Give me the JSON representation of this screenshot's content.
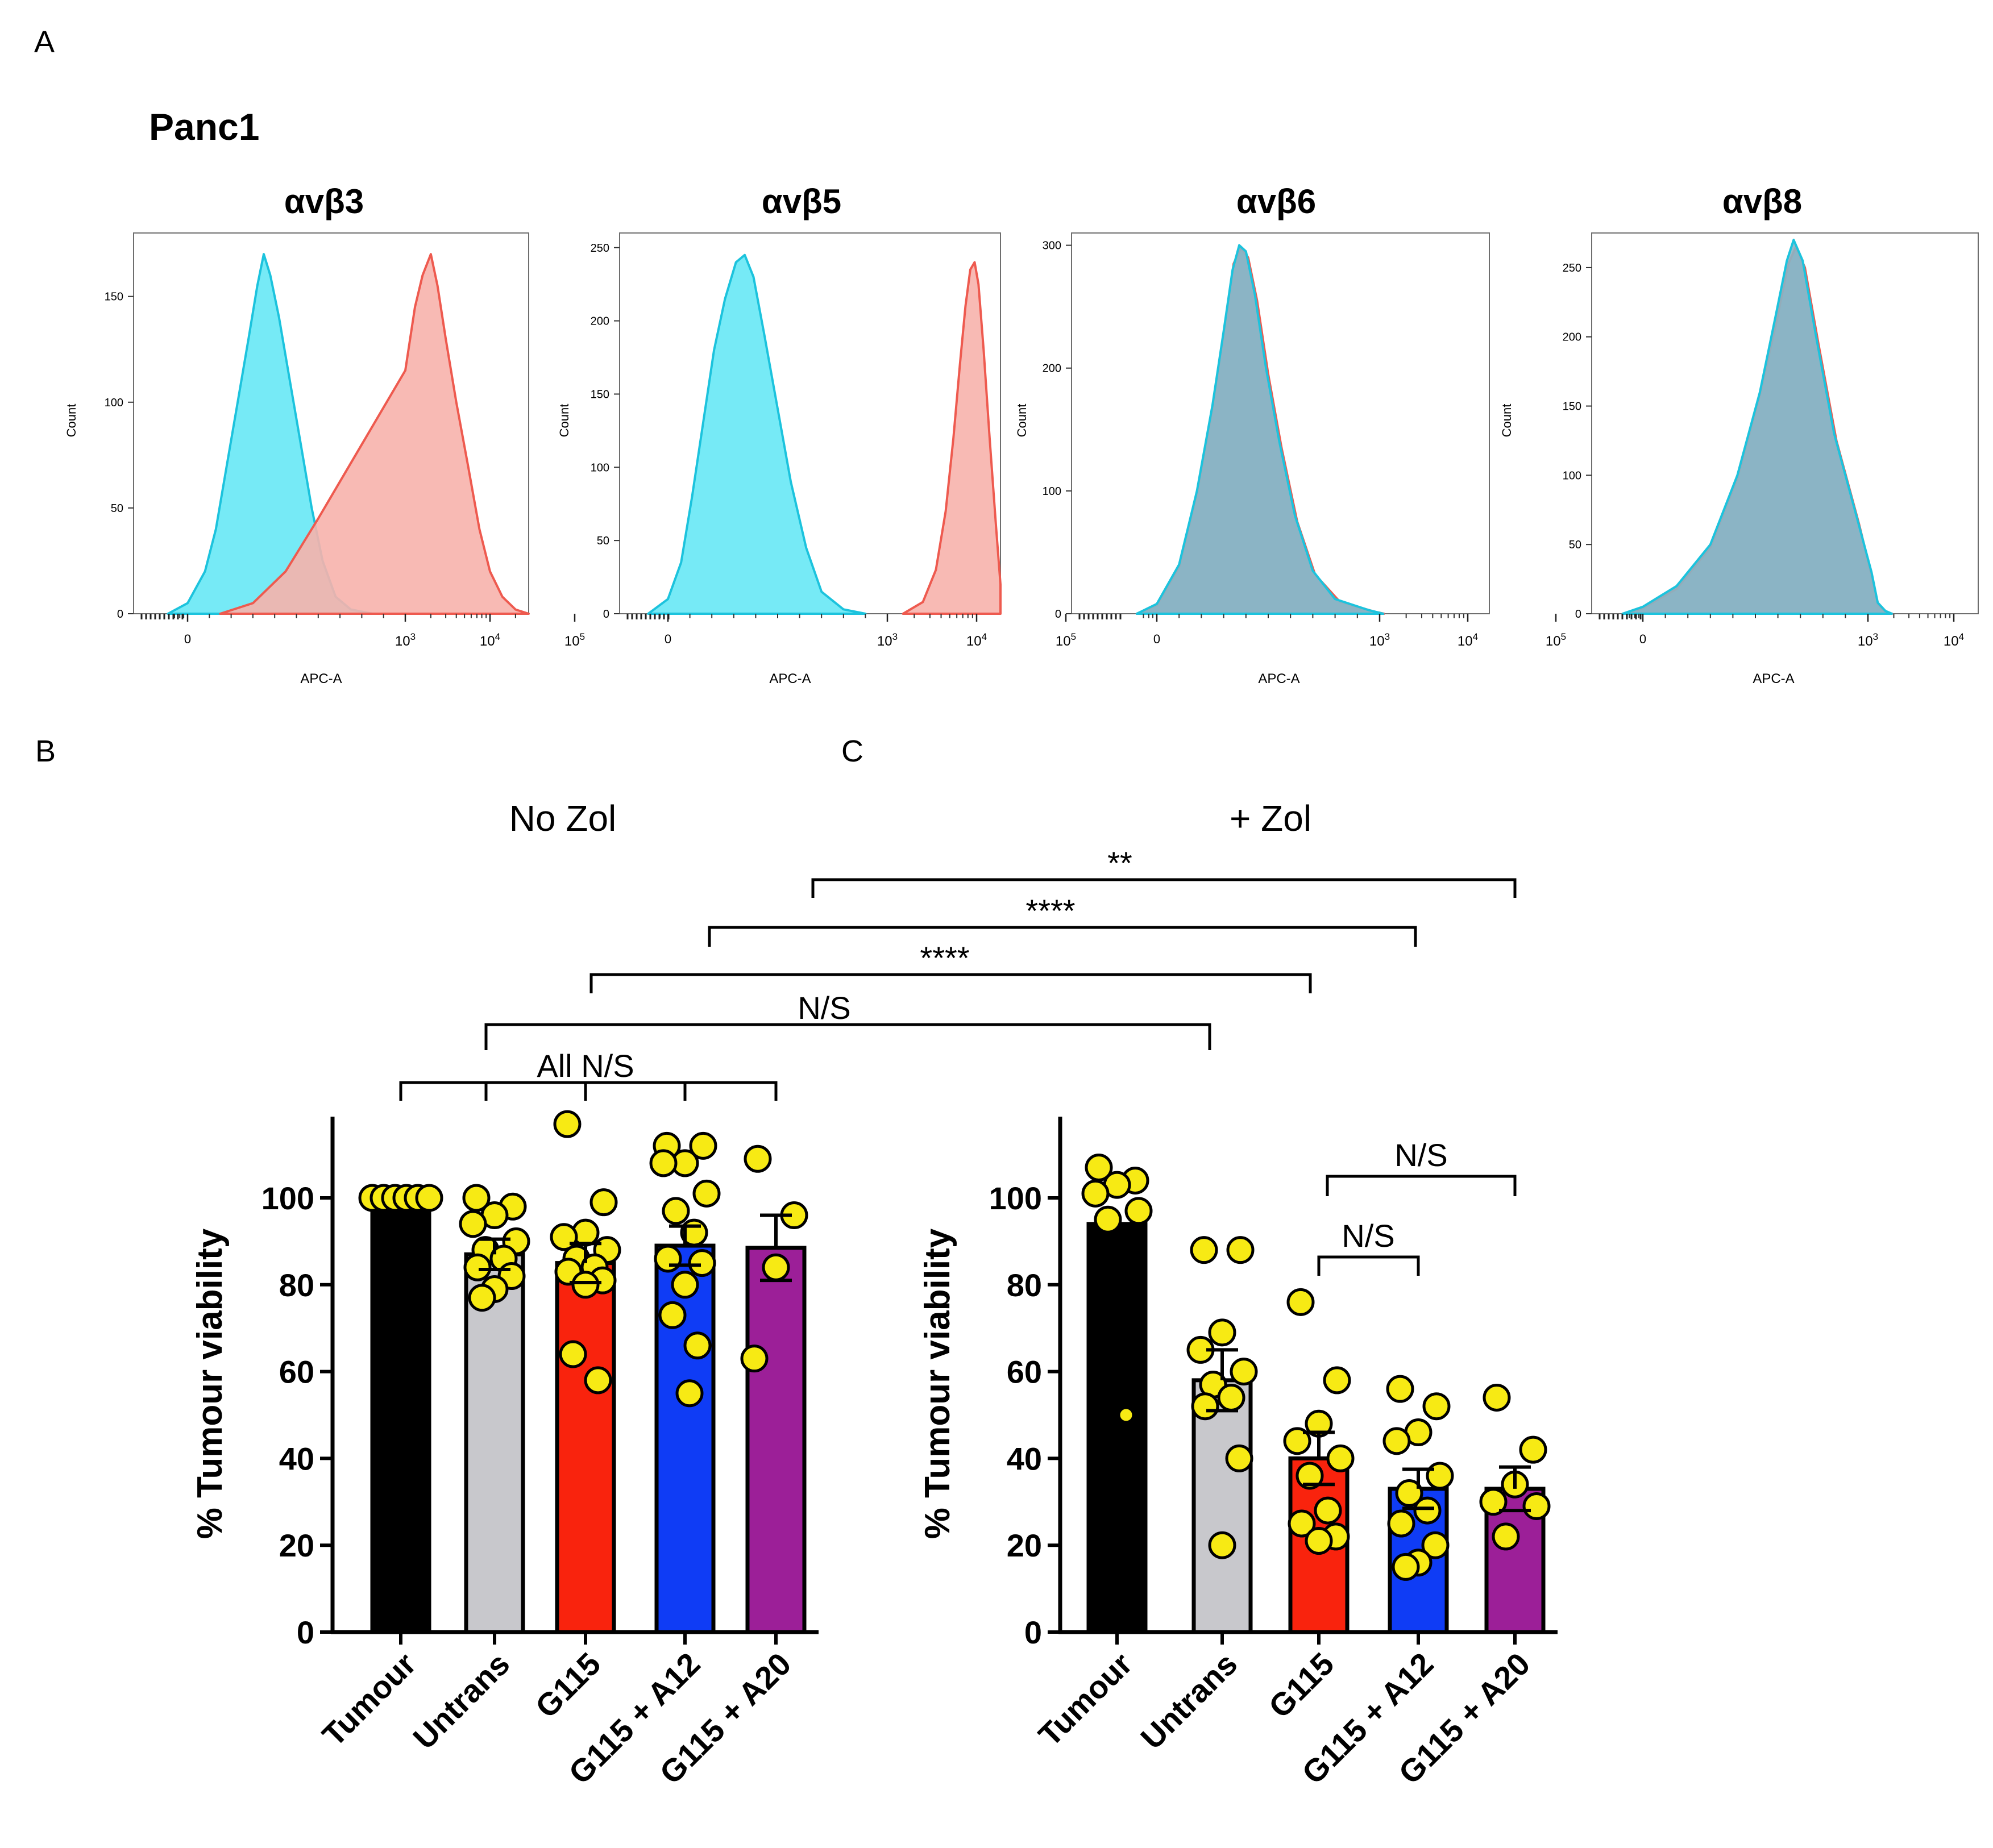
{
  "panel_labels": {
    "a": "A",
    "b": "B",
    "c": "C"
  },
  "cell_line": "Panc1",
  "colors": {
    "isotype_fill": "#6fe9f5",
    "isotype_line": "#1cc3dd",
    "stain_fill": "#f7b2ac",
    "stain_line": "#ee5a4f",
    "tumour": "#000000",
    "untrans": "#c8c8cc",
    "g115": "#f9230d",
    "g115_a12": "#0f3cf5",
    "g115_a20": "#9c1f98",
    "dot": "#f7ea14"
  },
  "chart_data": [
    {
      "type": "area",
      "title": "αvβ3",
      "xlabel": "APC-A",
      "ylabel": "Count",
      "yticks": [
        "0",
        "50",
        "100",
        "150"
      ],
      "ylim": [
        0,
        180
      ],
      "x_scale": "biexponential",
      "xticks": [
        "0",
        "10^3",
        "10^4",
        "10^5"
      ],
      "series": [
        {
          "points": [
            [
              -150,
              0
            ],
            [
              0,
              5
            ],
            [
              80,
              20
            ],
            [
              130,
              40
            ],
            [
              180,
              70
            ],
            [
              230,
              100
            ],
            [
              280,
              130
            ],
            [
              320,
              155
            ],
            [
              350,
              170
            ],
            [
              380,
              160
            ],
            [
              420,
              140
            ],
            [
              470,
              110
            ],
            [
              520,
              80
            ],
            [
              570,
              50
            ],
            [
              620,
              25
            ],
            [
              680,
              8
            ],
            [
              750,
              2
            ],
            [
              850,
              0
            ]
          ]
        },
        {
          "points": [
            [
              150,
              0
            ],
            [
              300,
              5
            ],
            [
              450,
              20
            ],
            [
              600,
              45
            ],
            [
              800,
              80
            ],
            [
              1000,
              115
            ],
            [
              1300,
              145
            ],
            [
              1600,
              160
            ],
            [
              2000,
              170
            ],
            [
              2400,
              155
            ],
            [
              3000,
              130
            ],
            [
              4000,
              100
            ],
            [
              5500,
              70
            ],
            [
              7500,
              40
            ],
            [
              10000,
              20
            ],
            [
              14000,
              8
            ],
            [
              20000,
              2
            ],
            [
              30000,
              0
            ]
          ]
        }
      ]
    },
    {
      "type": "area",
      "title": "αvβ5",
      "xlabel": "APC-A",
      "ylabel": "Count",
      "yticks": [
        "0",
        "50",
        "100",
        "150",
        "200",
        "250"
      ],
      "ylim": [
        0,
        260
      ],
      "x_scale": "biexponential",
      "xticks": [
        "0",
        "10^3",
        "10^4",
        "10^5"
      ],
      "series": [
        {
          "points": [
            [
              -150,
              0
            ],
            [
              0,
              10
            ],
            [
              60,
              35
            ],
            [
              110,
              80
            ],
            [
              160,
              130
            ],
            [
              210,
              180
            ],
            [
              260,
              215
            ],
            [
              310,
              240
            ],
            [
              350,
              245
            ],
            [
              390,
              230
            ],
            [
              440,
              190
            ],
            [
              500,
              140
            ],
            [
              560,
              90
            ],
            [
              630,
              45
            ],
            [
              700,
              15
            ],
            [
              800,
              3
            ],
            [
              900,
              0
            ]
          ]
        },
        {
          "points": [
            [
              1500,
              0
            ],
            [
              2500,
              8
            ],
            [
              3500,
              30
            ],
            [
              4500,
              70
            ],
            [
              5500,
              120
            ],
            [
              6500,
              170
            ],
            [
              7500,
              210
            ],
            [
              8500,
              235
            ],
            [
              9500,
              240
            ],
            [
              10500,
              225
            ],
            [
              12000,
              180
            ],
            [
              14000,
              120
            ],
            [
              16500,
              60
            ],
            [
              19500,
              20
            ],
            [
              23000,
              5
            ],
            [
              27000,
              0
            ]
          ]
        }
      ]
    },
    {
      "type": "area",
      "title": "αvβ6",
      "xlabel": "APC-A",
      "ylabel": "Count",
      "yticks": [
        "0",
        "100",
        "200",
        "300"
      ],
      "ylim": [
        0,
        310
      ],
      "x_scale": "biexponential",
      "xticks": [
        "0",
        "10^3",
        "10^4",
        "10^5"
      ],
      "series": [
        {
          "points": [
            [
              -150,
              0
            ],
            [
              0,
              8
            ],
            [
              100,
              40
            ],
            [
              180,
              100
            ],
            [
              250,
              170
            ],
            [
              300,
              230
            ],
            [
              340,
              280
            ],
            [
              370,
              300
            ],
            [
              400,
              295
            ],
            [
              440,
              260
            ],
            [
              490,
              200
            ],
            [
              550,
              140
            ],
            [
              620,
              80
            ],
            [
              700,
              35
            ],
            [
              800,
              12
            ],
            [
              950,
              3
            ],
            [
              1100,
              0
            ]
          ]
        },
        {
          "points": [
            [
              -150,
              0
            ],
            [
              0,
              7
            ],
            [
              100,
              38
            ],
            [
              180,
              98
            ],
            [
              250,
              168
            ],
            [
              305,
              235
            ],
            [
              345,
              285
            ],
            [
              378,
              298
            ],
            [
              410,
              290
            ],
            [
              450,
              255
            ],
            [
              500,
              195
            ],
            [
              560,
              135
            ],
            [
              630,
              75
            ],
            [
              710,
              32
            ],
            [
              820,
              10
            ],
            [
              970,
              2
            ],
            [
              1120,
              0
            ]
          ]
        }
      ]
    },
    {
      "type": "area",
      "title": "αvβ8",
      "xlabel": "APC-A",
      "ylabel": "Count",
      "yticks": [
        "0",
        "50",
        "100",
        "150",
        "200",
        "250"
      ],
      "ylim": [
        0,
        275
      ],
      "x_scale": "biexponential",
      "xticks": [
        "0",
        "10^3",
        "10^4",
        "10^5"
      ],
      "series": [
        {
          "points": [
            [
              -150,
              0
            ],
            [
              0,
              5
            ],
            [
              150,
              20
            ],
            [
              300,
              50
            ],
            [
              420,
              100
            ],
            [
              520,
              160
            ],
            [
              590,
              215
            ],
            [
              640,
              255
            ],
            [
              670,
              270
            ],
            [
              710,
              255
            ],
            [
              770,
              200
            ],
            [
              850,
              130
            ],
            [
              950,
              70
            ],
            [
              1100,
              30
            ],
            [
              1300,
              8
            ],
            [
              1600,
              2
            ],
            [
              1900,
              0
            ]
          ]
        },
        {
          "points": [
            [
              -150,
              0
            ],
            [
              0,
              4
            ],
            [
              150,
              18
            ],
            [
              300,
              48
            ],
            [
              420,
              98
            ],
            [
              520,
              158
            ],
            [
              595,
              212
            ],
            [
              645,
              252
            ],
            [
              680,
              265
            ],
            [
              720,
              250
            ],
            [
              780,
              195
            ],
            [
              860,
              125
            ],
            [
              960,
              65
            ],
            [
              1110,
              27
            ],
            [
              1310,
              7
            ],
            [
              1610,
              1
            ],
            [
              1910,
              0
            ]
          ]
        }
      ]
    },
    {
      "type": "bar",
      "title": "No Zol",
      "ylabel": "% Tumour viability",
      "ylim": [
        0,
        120
      ],
      "yticks": [
        "0",
        "20",
        "40",
        "60",
        "80",
        "100"
      ],
      "categories": [
        "Tumour",
        "Untrans",
        "G115",
        "G115 + A12",
        "G115 + A20"
      ],
      "values": [
        100,
        87,
        85,
        89,
        88.5
      ],
      "sem": [
        0,
        3.5,
        4.5,
        4.5,
        7.5
      ],
      "points": [
        [
          100,
          100,
          100,
          100,
          100,
          100
        ],
        [
          100,
          98,
          96,
          94,
          90,
          88,
          86,
          84,
          82,
          79,
          77
        ],
        [
          117,
          99,
          92,
          91,
          88,
          86,
          84,
          83,
          81,
          80,
          64,
          58
        ],
        [
          112,
          112,
          108,
          108,
          101,
          97,
          92,
          86,
          85,
          80,
          73,
          66,
          55
        ],
        [
          109,
          96,
          84,
          63
        ]
      ],
      "comparisons": [
        {
          "label": "All N/S"
        }
      ]
    },
    {
      "type": "bar",
      "title": "+ Zol",
      "ylabel": "% Tumour viability",
      "ylim": [
        0,
        120
      ],
      "yticks": [
        "0",
        "20",
        "40",
        "60",
        "80",
        "100"
      ],
      "categories": [
        "Tumour",
        "Untrans",
        "G115",
        "G115 + A12",
        "G115 + A20"
      ],
      "values": [
        94,
        58,
        40,
        33,
        33
      ],
      "sem": [
        0,
        7,
        6,
        4.5,
        5
      ],
      "points": [
        [
          107,
          104,
          103,
          101,
          97,
          95,
          50
        ],
        [
          88,
          88,
          69,
          65,
          60,
          57,
          54,
          52,
          40,
          20
        ],
        [
          76,
          58,
          48,
          44,
          40,
          36,
          28,
          25,
          22,
          21
        ],
        [
          56,
          52,
          46,
          44,
          36,
          32,
          28,
          25,
          20,
          16,
          15
        ],
        [
          54,
          42,
          34,
          30,
          29,
          22
        ]
      ],
      "comparisons": [
        {
          "label": "N/S"
        },
        {
          "label": "N/S"
        }
      ]
    }
  ],
  "cross_comparisons": [
    {
      "label": "**"
    },
    {
      "label": "****"
    },
    {
      "label": "****"
    },
    {
      "label": "N/S"
    }
  ]
}
